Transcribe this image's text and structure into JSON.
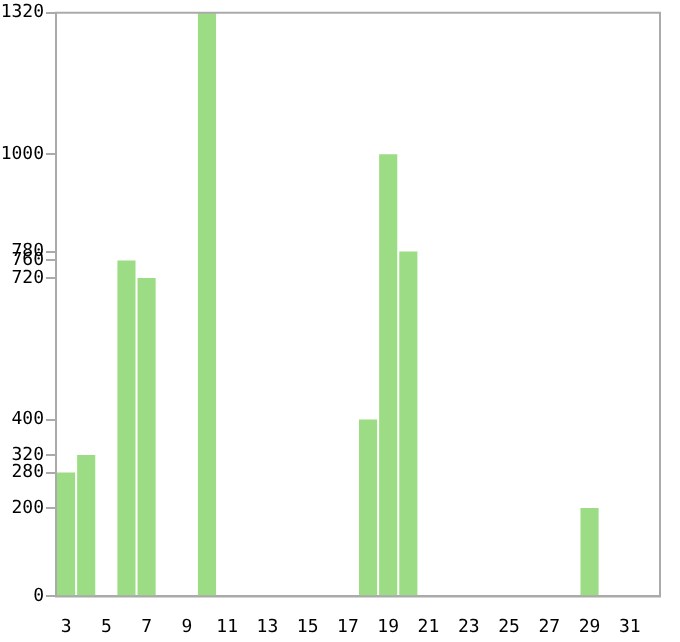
{
  "chart_data": {
    "type": "bar",
    "categories": [
      "3",
      null,
      "5",
      null,
      "7",
      null,
      "9",
      null,
      "11",
      null,
      "13",
      null,
      "15",
      null,
      "17",
      null,
      "19",
      null,
      "21",
      null,
      "23",
      null,
      "25",
      null,
      "27",
      null,
      "29",
      null,
      "31",
      null
    ],
    "values": [
      280,
      320,
      0,
      760,
      720,
      0,
      0,
      1320,
      0,
      0,
      0,
      0,
      0,
      0,
      0,
      400,
      1000,
      780,
      0,
      0,
      0,
      0,
      0,
      0,
      0,
      0,
      200,
      0,
      0,
      0
    ],
    "color": "#9cdc84",
    "ylim": [
      0,
      1320
    ],
    "yticks": [
      0,
      200,
      280,
      320,
      400,
      720,
      760,
      780,
      1000,
      1320
    ],
    "grid": false
  }
}
